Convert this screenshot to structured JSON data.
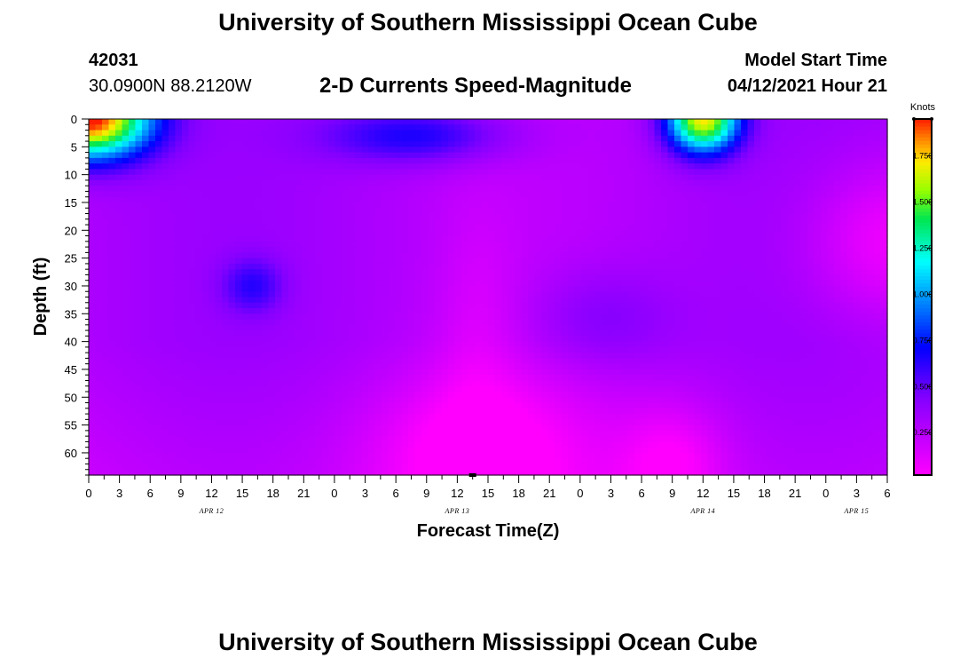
{
  "header": {
    "title": "University of Southern Mississippi Ocean Cube",
    "station_id": "42031",
    "coordinates": "30.0900N  88.2120W",
    "subtitle": "2-D Currents Speed-Magnitude",
    "model_start_label": "Model Start Time",
    "model_start_time": "04/12/2021 Hour 21"
  },
  "footer": {
    "title": "University of Southern Mississippi Ocean Cube"
  },
  "chart_data": {
    "type": "heatmap",
    "xlabel": "Forecast Time(Z)",
    "ylabel": "Depth (ft)",
    "x_tick_labels": [
      "0",
      "3",
      "6",
      "9",
      "12",
      "15",
      "18",
      "21",
      "0",
      "3",
      "6",
      "9",
      "12",
      "15",
      "18",
      "21",
      "0",
      "3",
      "6",
      "9",
      "12",
      "15",
      "18",
      "21",
      "0",
      "3",
      "6"
    ],
    "x_range_hours": [
      0,
      78
    ],
    "x_tick_step_hours": 3,
    "date_labels": [
      {
        "label": "APR 12",
        "hour": 12
      },
      {
        "label": "APR 13",
        "hour": 36
      },
      {
        "label": "APR 14",
        "hour": 60
      },
      {
        "label": "APR 15",
        "hour": 75
      }
    ],
    "y_range_ft": [
      0,
      64
    ],
    "y_tick_labels": [
      "0",
      "5",
      "10",
      "15",
      "20",
      "25",
      "30",
      "35",
      "40",
      "45",
      "50",
      "55",
      "60"
    ],
    "y_tick_values": [
      0,
      5,
      10,
      15,
      20,
      25,
      30,
      35,
      40,
      45,
      50,
      55,
      60
    ],
    "colorbar": {
      "unit": "Knots",
      "range": [
        0.02,
        1.95
      ],
      "tick_values": [
        0.25,
        0.5,
        0.75,
        1.0,
        1.25,
        1.5,
        1.75
      ],
      "tick_labels": [
        "0.250",
        "0.500",
        "0.750",
        "1.000",
        "1.250",
        "1.500",
        "1.750"
      ],
      "colormap": "magenta-blue-cyan-green-yellow-red"
    },
    "features_knots": [
      {
        "hour": 0,
        "depth": 0,
        "value": 1.95
      },
      {
        "hour": 60,
        "depth": 0,
        "value": 1.7
      },
      {
        "hour": 32,
        "depth": 2,
        "value": 0.65
      },
      {
        "hour": 16,
        "depth": 30,
        "value": 0.5
      },
      {
        "hour": 50,
        "depth": 35,
        "value": 0.42
      },
      {
        "hour": 38,
        "depth": 60,
        "value": 0.05
      },
      {
        "hour": 56,
        "depth": 60,
        "value": 0.05
      },
      {
        "hour": 76,
        "depth": 20,
        "value": 0.1
      }
    ]
  }
}
